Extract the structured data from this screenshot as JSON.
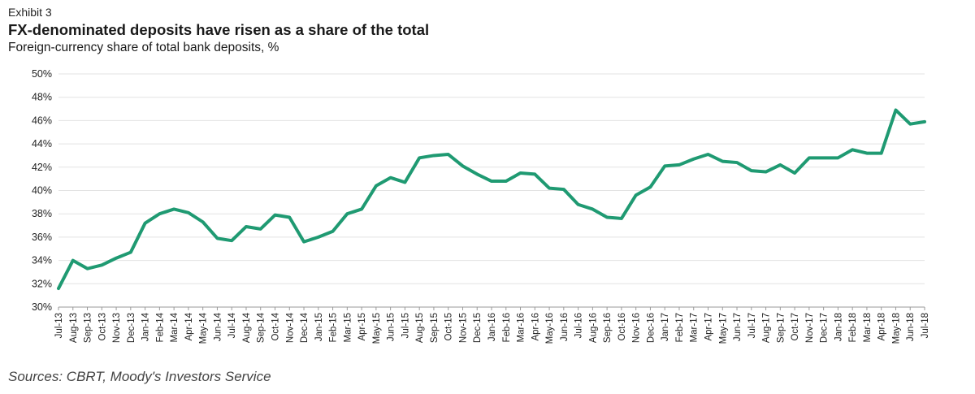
{
  "header": {
    "exhibit": "Exhibit 3",
    "title": "FX-denominated deposits have risen as a share of the total",
    "subtitle": "Foreign-currency share of total bank deposits, %"
  },
  "footer": {
    "source": "Sources: CBRT, Moody's Investors Service"
  },
  "colors": {
    "line": "#1f9a72",
    "grid": "#e3e3e3",
    "axis": "#9a9a9a"
  },
  "chart_data": {
    "type": "line",
    "title": "FX-denominated deposits have risen as a share of the total",
    "subtitle": "Foreign-currency share of total bank deposits, %",
    "xlabel": "",
    "ylabel": "",
    "ylim": [
      30,
      50
    ],
    "yticks": [
      30,
      32,
      34,
      36,
      38,
      40,
      42,
      44,
      46,
      48,
      50
    ],
    "ytick_labels": [
      "30%",
      "32%",
      "34%",
      "36%",
      "38%",
      "40%",
      "42%",
      "44%",
      "46%",
      "48%",
      "50%"
    ],
    "grid": true,
    "legend": "none",
    "categories": [
      "Jul-13",
      "Aug-13",
      "Sep-13",
      "Oct-13",
      "Nov-13",
      "Dec-13",
      "Jan-14",
      "Feb-14",
      "Mar-14",
      "Apr-14",
      "May-14",
      "Jun-14",
      "Jul-14",
      "Aug-14",
      "Sep-14",
      "Oct-14",
      "Nov-14",
      "Dec-14",
      "Jan-15",
      "Feb-15",
      "Mar-15",
      "Apr-15",
      "May-15",
      "Jun-15",
      "Jul-15",
      "Aug-15",
      "Sep-15",
      "Oct-15",
      "Nov-15",
      "Dec-15",
      "Jan-16",
      "Feb-16",
      "Mar-16",
      "Apr-16",
      "May-16",
      "Jun-16",
      "Jul-16",
      "Aug-16",
      "Sep-16",
      "Oct-16",
      "Nov-16",
      "Dec-16",
      "Jan-17",
      "Feb-17",
      "Mar-17",
      "Apr-17",
      "May-17",
      "Jun-17",
      "Jul-17",
      "Aug-17",
      "Sep-17",
      "Oct-17",
      "Nov-17",
      "Dec-17",
      "Jan-18",
      "Feb-18",
      "Mar-18",
      "Apr-18",
      "May-18",
      "Jun-18",
      "Jul-18"
    ],
    "series": [
      {
        "values": [
          31.6,
          34.0,
          33.3,
          33.6,
          34.2,
          34.7,
          37.2,
          38.0,
          38.4,
          38.1,
          37.3,
          35.9,
          35.7,
          36.9,
          36.7,
          37.9,
          37.7,
          35.6,
          36.0,
          36.5,
          38.0,
          38.4,
          40.4,
          41.1,
          40.7,
          42.8,
          43.0,
          43.1,
          42.1,
          41.4,
          40.8,
          40.8,
          41.5,
          41.4,
          40.2,
          40.1,
          38.8,
          38.4,
          37.7,
          37.6,
          39.6,
          40.3,
          42.1,
          42.2,
          42.7,
          43.1,
          42.5,
          42.4,
          41.7,
          41.6,
          42.2,
          41.5,
          42.8,
          42.8,
          42.8,
          43.5,
          43.2,
          43.2,
          46.9,
          45.7,
          45.9
        ]
      }
    ]
  }
}
